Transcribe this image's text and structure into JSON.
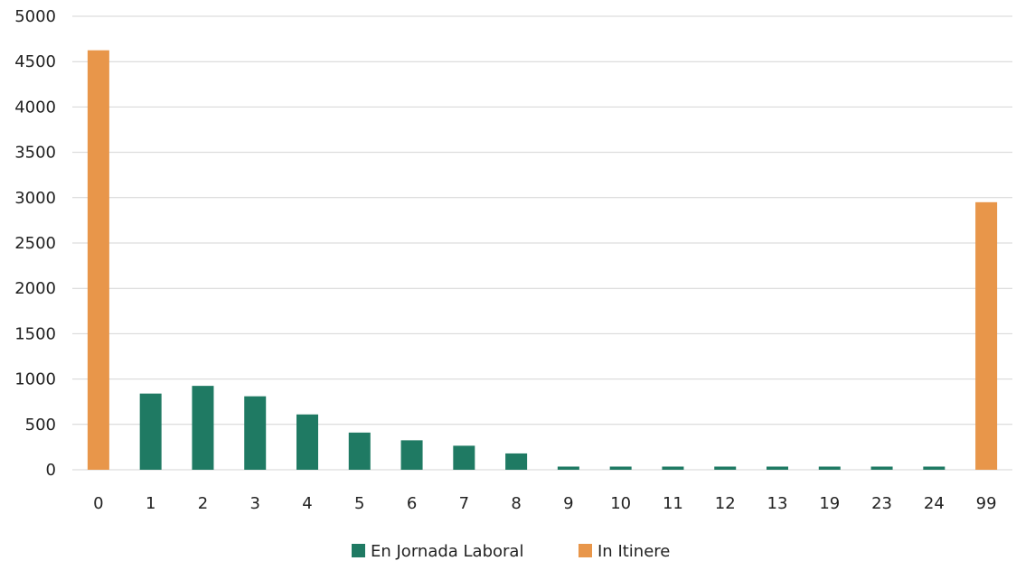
{
  "chart_data": {
    "type": "bar",
    "categories": [
      "0",
      "1",
      "2",
      "3",
      "4",
      "5",
      "6",
      "7",
      "8",
      "9",
      "10",
      "11",
      "12",
      "13",
      "19",
      "23",
      "24",
      "99"
    ],
    "series": [
      {
        "name": "En Jornada Laboral",
        "color": "#1f7a63",
        "values": [
          0,
          840,
          925,
          810,
          610,
          410,
          325,
          265,
          180,
          35,
          35,
          35,
          35,
          35,
          35,
          35,
          35,
          0
        ]
      },
      {
        "name": "In Itinere",
        "color": "#e8964a",
        "values": [
          4625,
          0,
          0,
          0,
          0,
          0,
          0,
          0,
          0,
          0,
          0,
          0,
          0,
          0,
          0,
          0,
          0,
          2950
        ]
      }
    ],
    "ylim": [
      0,
      5000
    ],
    "yticks": [
      0,
      500,
      1000,
      1500,
      2000,
      2500,
      3000,
      3500,
      4000,
      4500,
      5000
    ],
    "grid": true,
    "legend_position": "bottom-center",
    "title": "",
    "xlabel": "",
    "ylabel": ""
  }
}
